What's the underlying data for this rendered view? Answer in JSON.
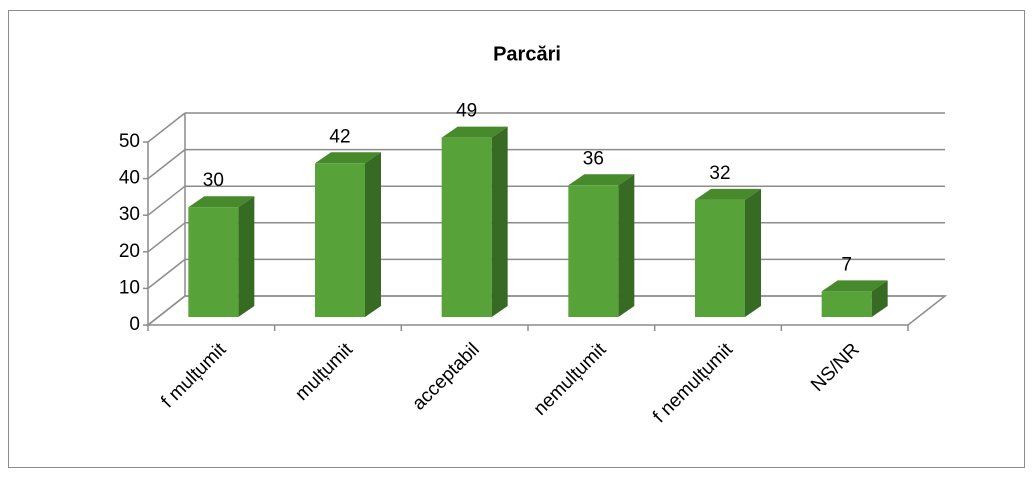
{
  "chart_data": {
    "type": "bar3d",
    "title": "Parcări",
    "categories": [
      "f mulțumit",
      "mulțumit",
      "acceptabil",
      "nemulțumit",
      "f nemulțumit",
      "NS/NR"
    ],
    "values": [
      30,
      42,
      49,
      36,
      32,
      7
    ],
    "color": "#58a23a",
    "ylim": [
      0,
      50
    ],
    "yticks": [
      0,
      10,
      20,
      30,
      40,
      50
    ],
    "grid": true
  }
}
